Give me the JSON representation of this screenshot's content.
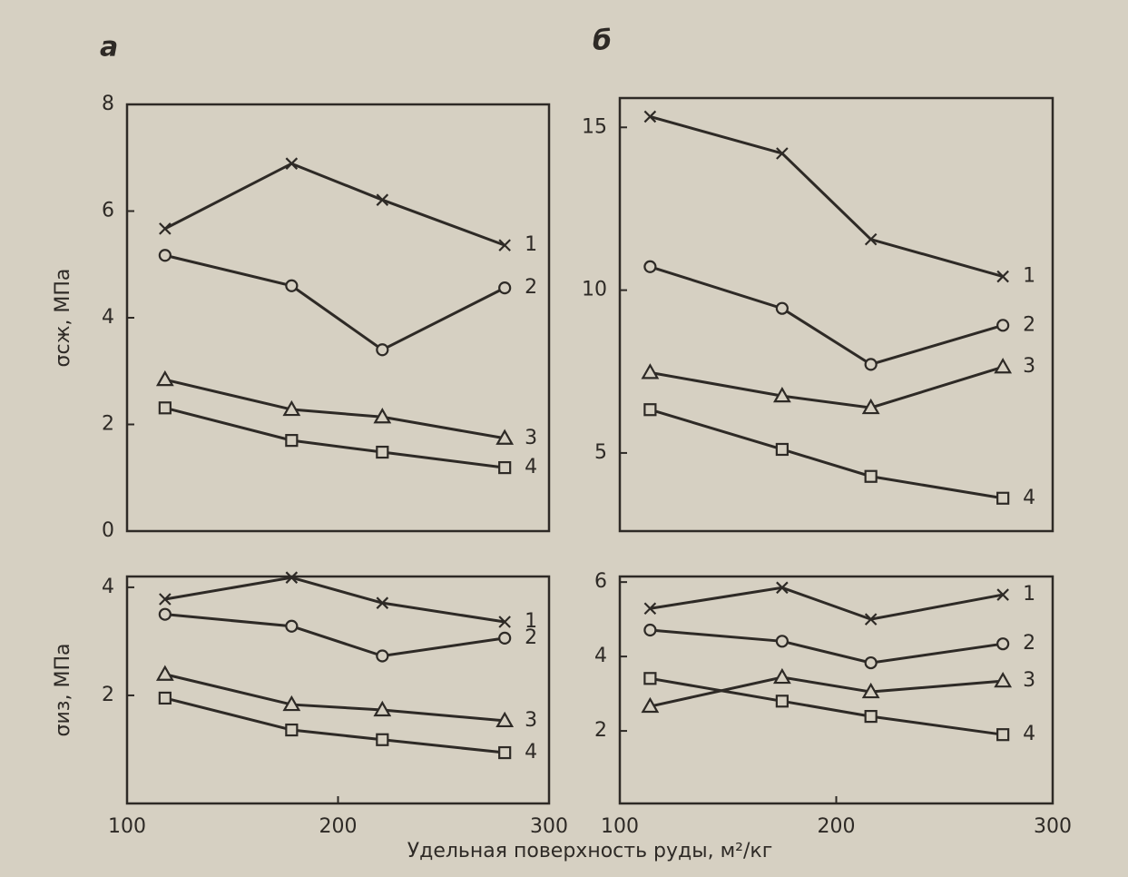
{
  "chart_data": [
    {
      "type": "line",
      "title": "а",
      "ylabel": "σсж, МПа",
      "x": [
        118,
        178,
        221,
        279
      ],
      "xlim": [
        100,
        300
      ],
      "ylim": [
        0,
        8
      ],
      "yticks": [
        0,
        2,
        4,
        6,
        8
      ],
      "series": [
        {
          "name": "1",
          "color": "#2e2a26",
          "marker": "x",
          "values": [
            5.67,
            6.89,
            6.21,
            5.36
          ]
        },
        {
          "name": "2",
          "color": "#2e2a26",
          "marker": "o",
          "values": [
            5.17,
            4.6,
            3.4,
            4.56
          ]
        },
        {
          "name": "3",
          "color": "#2e2a26",
          "marker": "^",
          "values": [
            2.84,
            2.28,
            2.14,
            1.74
          ]
        },
        {
          "name": "4",
          "color": "#2e2a26",
          "marker": "s",
          "values": [
            2.31,
            1.7,
            1.48,
            1.19
          ]
        }
      ]
    },
    {
      "type": "line",
      "title": "б",
      "x": [
        114,
        175,
        216,
        277
      ],
      "xlim": [
        100,
        300
      ],
      "ylim": [
        2.6,
        15.9
      ],
      "yticks": [
        5,
        10,
        15
      ],
      "series": [
        {
          "name": "1",
          "color": "#2e2a26",
          "marker": "x",
          "values": [
            15.33,
            14.2,
            11.56,
            10.42
          ]
        },
        {
          "name": "2",
          "color": "#2e2a26",
          "marker": "o",
          "values": [
            10.72,
            9.44,
            7.72,
            8.92
          ]
        },
        {
          "name": "3",
          "color": "#2e2a26",
          "marker": "^",
          "values": [
            7.47,
            6.75,
            6.39,
            7.64
          ]
        },
        {
          "name": "4",
          "color": "#2e2a26",
          "marker": "s",
          "values": [
            6.33,
            5.11,
            4.28,
            3.61
          ]
        }
      ]
    },
    {
      "type": "line",
      "ylabel": "σиз, МПа",
      "xlabel": "Удельная поверхность руды, м²/кг",
      "x": [
        118,
        178,
        221,
        279
      ],
      "xlim": [
        100,
        300
      ],
      "xticks": [
        100,
        200,
        300
      ],
      "ylim": [
        0,
        4.2
      ],
      "yticks": [
        2,
        4
      ],
      "series": [
        {
          "name": "1",
          "color": "#2e2a26",
          "marker": "x",
          "values": [
            3.78,
            4.18,
            3.71,
            3.36
          ]
        },
        {
          "name": "2",
          "color": "#2e2a26",
          "marker": "o",
          "values": [
            3.5,
            3.28,
            2.73,
            3.06
          ]
        },
        {
          "name": "3",
          "color": "#2e2a26",
          "marker": "^",
          "values": [
            2.39,
            1.83,
            1.73,
            1.53
          ]
        },
        {
          "name": "4",
          "color": "#2e2a26",
          "marker": "s",
          "values": [
            1.95,
            1.36,
            1.18,
            0.94
          ]
        }
      ]
    },
    {
      "type": "line",
      "x": [
        114,
        175,
        216,
        277
      ],
      "xlim": [
        100,
        300
      ],
      "xticks": [
        100,
        200,
        300
      ],
      "ylim": [
        0.05,
        6.15
      ],
      "yticks": [
        2,
        4,
        6
      ],
      "series": [
        {
          "name": "1",
          "color": "#2e2a26",
          "marker": "x",
          "values": [
            5.29,
            5.85,
            5.0,
            5.66
          ]
        },
        {
          "name": "2",
          "color": "#2e2a26",
          "marker": "o",
          "values": [
            4.71,
            4.41,
            3.83,
            4.34
          ]
        },
        {
          "name": "3",
          "color": "#2e2a26",
          "marker": "^",
          "values": [
            2.66,
            3.44,
            3.05,
            3.34
          ]
        },
        {
          "name": "4",
          "color": "#2e2a26",
          "marker": "s",
          "values": [
            3.41,
            2.8,
            2.39,
            1.9
          ]
        }
      ]
    }
  ]
}
